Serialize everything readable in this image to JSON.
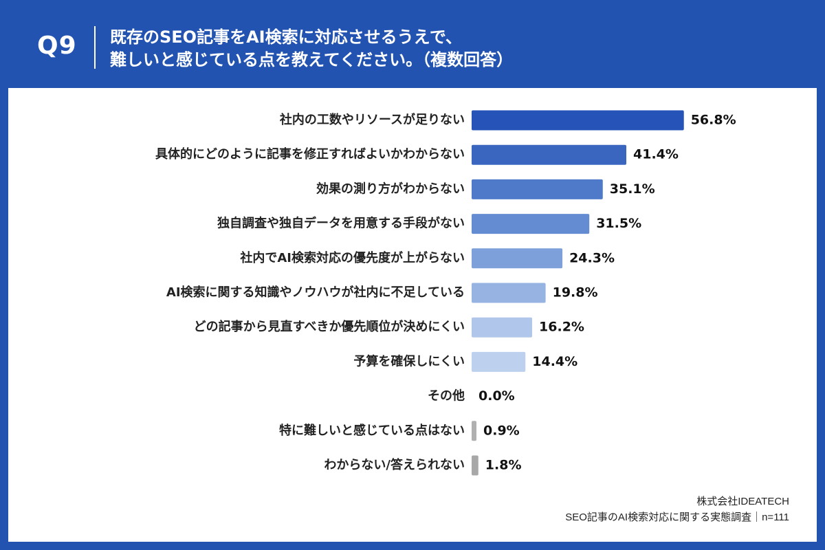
{
  "header": {
    "question_number": "Q9",
    "title_line1": "既存のSEO記事をAI検索に対応させるうえで、",
    "title_line2": "難しいと感じている点を教えてください。（複数回答）"
  },
  "chart_data": {
    "type": "bar",
    "orientation": "horizontal",
    "categories": [
      "社内の工数やリソースが足りない",
      "具体的にどのように記事を修正すればよいかわからない",
      "効果の測り方がわからない",
      "独自調査や独自データを用意する手段がない",
      "社内でAI検索対応の優先度が上がらない",
      "AI検索に関する知識やノウハウが社内に不足している",
      "どの記事から見直すべきか優先順位が決めにくい",
      "予算を確保しにくい",
      "その他",
      "特に難しいと感じている点はない",
      "わからない/答えられない"
    ],
    "values": [
      56.8,
      41.4,
      35.1,
      31.5,
      24.3,
      19.8,
      16.2,
      14.4,
      0.0,
      0.9,
      1.8
    ],
    "value_labels": [
      "56.8%",
      "41.4%",
      "35.1%",
      "31.5%",
      "24.3%",
      "19.8%",
      "16.2%",
      "14.4%",
      "0.0%",
      "0.9%",
      "1.8%"
    ],
    "colors": [
      "#2553b8",
      "#3a66c0",
      "#4f79c9",
      "#638cd2",
      "#7d9fda",
      "#97b3e2",
      "#b0c6ea",
      "#bdd0ee",
      "#b0b0b0",
      "#b0b0b0",
      "#a8a8a8"
    ],
    "xlim": [
      0,
      60
    ],
    "grid": false,
    "legend": "none"
  },
  "footer": {
    "company": "株式会社IDEATECH",
    "survey": "SEO記事のAI検索対応に関する実態調査｜n=111"
  }
}
